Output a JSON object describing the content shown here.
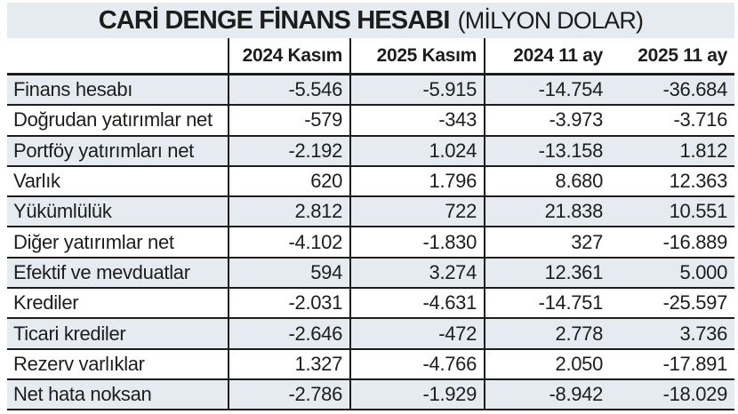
{
  "title": {
    "main": "CARİ DENGE FİNANS HESABI",
    "unit": "(MİLYON DOLAR)"
  },
  "colors": {
    "stripe_fill": "#e6ebf2",
    "border": "#1c1c1c",
    "text": "#1d1d1b",
    "background": "#ffffff"
  },
  "chart_data": {
    "type": "table",
    "title": "CARİ DENGE FİNANS HESABI (MİLYON DOLAR)",
    "columns": [
      "",
      "2024 Kasım",
      "2025 Kasım",
      "2024 11 ay",
      "2025 11 ay"
    ],
    "rows": [
      {
        "label": "Finans hesabı",
        "values": [
          "-5.546",
          "-5.915",
          "-14.754",
          "-36.684"
        ]
      },
      {
        "label": "Doğrudan yatırımlar net",
        "values": [
          "-579",
          "-343",
          "-3.973",
          "-3.716"
        ]
      },
      {
        "label": "Portföy yatırımları net",
        "values": [
          "-2.192",
          "1.024",
          "-13.158",
          "1.812"
        ]
      },
      {
        "label": "Varlık",
        "values": [
          "620",
          "1.796",
          "8.680",
          "12.363"
        ]
      },
      {
        "label": "Yükümlülük",
        "values": [
          "2.812",
          "722",
          "21.838",
          "10.551"
        ]
      },
      {
        "label": "Diğer yatırımlar net",
        "values": [
          "-4.102",
          "-1.830",
          "327",
          "-16.889"
        ]
      },
      {
        "label": "Efektif ve mevduatlar",
        "values": [
          "594",
          "3.274",
          "12.361",
          "5.000"
        ]
      },
      {
        "label": "Krediler",
        "values": [
          "-2.031",
          "-4.631",
          "-14.751",
          "-25.597"
        ]
      },
      {
        "label": "Ticari krediler",
        "values": [
          "-2.646",
          "-472",
          "2.778",
          "3.736"
        ]
      },
      {
        "label": "Rezerv varlıklar",
        "values": [
          "1.327",
          "-4.766",
          "2.050",
          "-17.891"
        ]
      },
      {
        "label": "Net hata noksan",
        "values": [
          "-2.786",
          "-1.929",
          "-8.942",
          "-18.029"
        ]
      }
    ]
  }
}
